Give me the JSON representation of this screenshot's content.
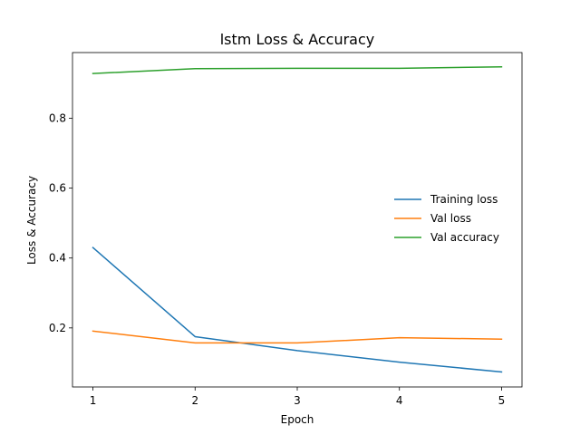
{
  "chart_data": {
    "type": "line",
    "title": "lstm Loss & Accuracy",
    "xlabel": "Epoch",
    "ylabel": "Loss & Accuracy",
    "x": [
      1,
      2,
      3,
      4,
      5
    ],
    "xticks": [
      "1",
      "2",
      "3",
      "4",
      "5"
    ],
    "yticks": [
      "0.2",
      "0.4",
      "0.6",
      "0.8"
    ],
    "ytick_values": [
      0.2,
      0.4,
      0.6,
      0.8
    ],
    "xlim": [
      0.8,
      5.2
    ],
    "ylim": [
      0.031,
      0.988
    ],
    "grid": false,
    "legend_position": "center-right",
    "series": [
      {
        "name": "Training loss",
        "color": "#1f77b4",
        "values": [
          0.43,
          0.175,
          0.135,
          0.102,
          0.074
        ]
      },
      {
        "name": "Val loss",
        "color": "#ff7f0e",
        "values": [
          0.191,
          0.157,
          0.157,
          0.172,
          0.168
        ]
      },
      {
        "name": "Val accuracy",
        "color": "#2ca02c",
        "values": [
          0.928,
          0.942,
          0.943,
          0.943,
          0.947
        ]
      }
    ]
  }
}
